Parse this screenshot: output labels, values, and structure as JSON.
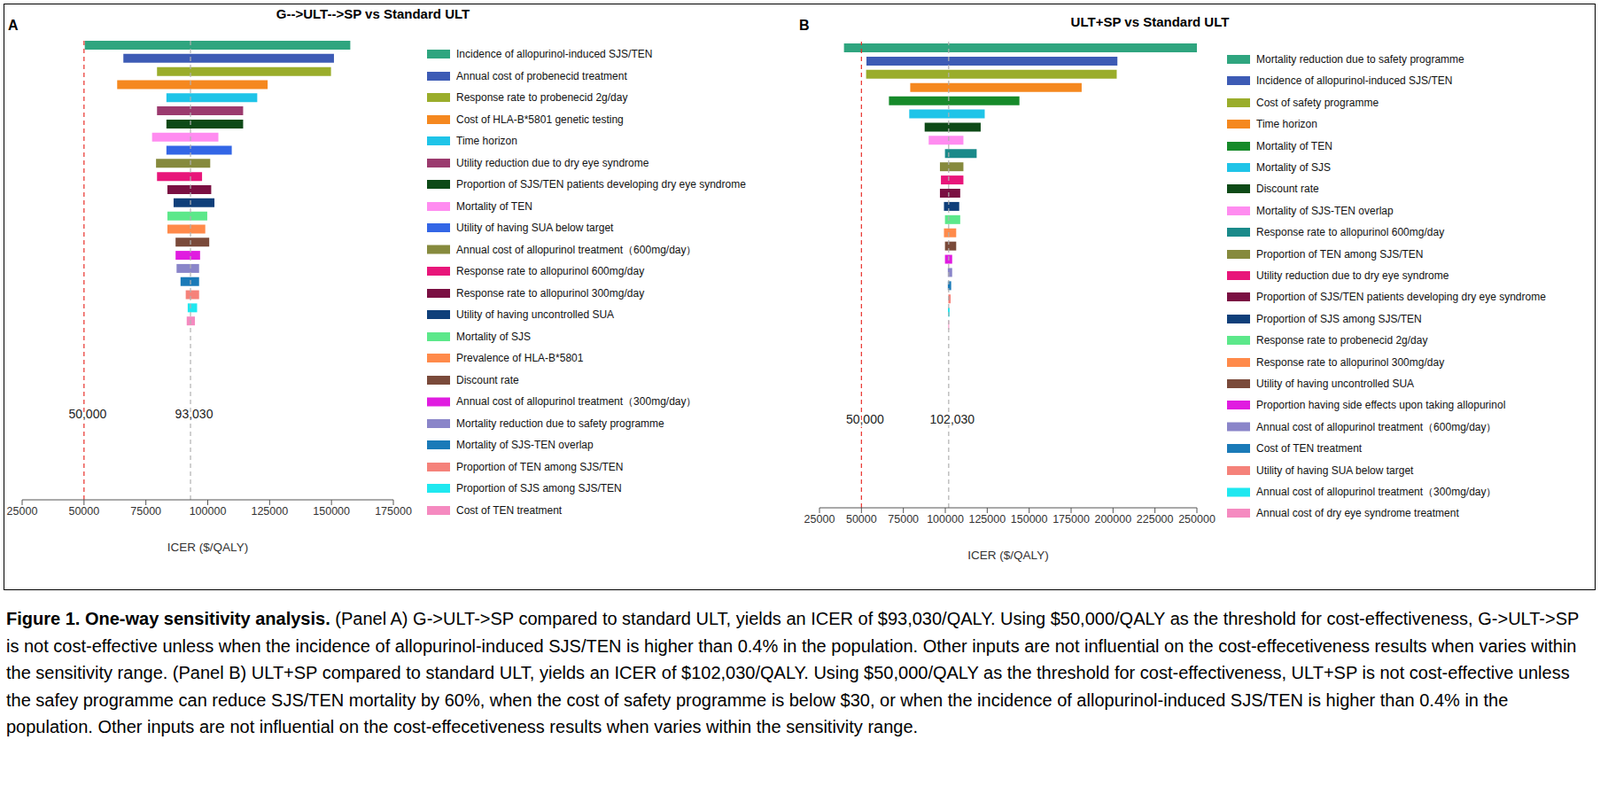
{
  "chart_data": [
    {
      "type": "bar",
      "orientation": "horizontal",
      "panel_label": "A",
      "title": "G-->ULT-->SP vs Standard ULT",
      "x_label": "ICER ($/QALY)",
      "legend": "right",
      "tick_labels": "x",
      "categories": [
        "Incidence of allopurinol-induced SJS/TEN",
        "Annual cost of probenecid treatment",
        "Response rate to probenecid 2g/day",
        "Cost of HLA-B*5801 genetic testing",
        "Time horizon",
        "Utility reduction due to dry eye syndrome",
        "Proportion of SJS/TEN patients developing dry eye syndrome",
        "Mortality of TEN",
        "Utility of having SUA below target",
        "Annual cost of allopurinol treatment（600mg/day）",
        "Response rate to allopurinol 600mg/day",
        "Response rate to allopurinol 300mg/day",
        "Utility of having uncontrolled SUA",
        "Mortality of SJS",
        "Prevalence of HLA-B*5801",
        "Discount rate",
        "Annual cost of allopurinol treatment（300mg/day）",
        "Mortality reduction due to safety programme",
        "Mortality of SJS-TEN overlap",
        "Proportion of TEN among SJS/TEN",
        "Proportion of SJS among SJS/TEN",
        "Cost of TEN treatment"
      ],
      "low": [
        50300,
        65900,
        79500,
        63400,
        83300,
        79500,
        83300,
        77500,
        83300,
        79100,
        79500,
        83700,
        86200,
        83700,
        83700,
        87000,
        87000,
        87400,
        89000,
        91100,
        91900,
        91500
      ],
      "high": [
        157600,
        151000,
        149800,
        124200,
        120000,
        114300,
        114300,
        104300,
        109700,
        101000,
        97700,
        101400,
        102700,
        99800,
        99000,
        100600,
        96900,
        96500,
        96500,
        96500,
        95700,
        94800
      ],
      "colors": [
        "#2fa57f",
        "#3d5bb5",
        "#9aad2b",
        "#f5881f",
        "#1fc4e8",
        "#9b3a6e",
        "#0d4a17",
        "#ff8cf0",
        "#3366e6",
        "#868a3d",
        "#e8167a",
        "#7a0f42",
        "#0f3f7a",
        "#5ce88a",
        "#ff8a4a",
        "#7a4a3a",
        "#e01ce0",
        "#8a85c9",
        "#1a7ab8",
        "#f5827a",
        "#1fe8f0",
        "#f58ac0"
      ],
      "xlim": [
        25000,
        175000
      ],
      "xticks": [
        25000,
        50000,
        75000,
        100000,
        125000,
        150000,
        175000
      ],
      "reference_lines": [
        {
          "value": 50000,
          "label": "50,000",
          "color": "#e8302a",
          "line_style": "dashed"
        },
        {
          "value": 93030,
          "label": "93,030",
          "color": "#b0b0b0",
          "line_style": "dashed"
        }
      ]
    },
    {
      "type": "bar",
      "orientation": "horizontal",
      "panel_label": "B",
      "title": "ULT+SP vs Standard ULT",
      "x_label": "ICER ($/QALY)",
      "legend": "right",
      "tick_labels": "x",
      "categories": [
        "Mortality reduction due to safety programme",
        "Incidence of allopurinol-induced SJS/TEN",
        "Cost of safety programme",
        "Time horizon",
        "Mortality of TEN",
        "Mortality of SJS",
        "Discount rate",
        "Mortality of SJS-TEN overlap",
        "Response rate to allopurinol 600mg/day",
        "Proportion of TEN among SJS/TEN",
        "Utility reduction due to dry eye syndrome",
        "Proportion of SJS/TEN patients developing dry eye syndrome",
        "Proportion of SJS among SJS/TEN",
        "Response rate to probenecid 2g/day",
        "Response rate to allopurinol 300mg/day",
        "Utility of having uncontrolled SUA",
        "Proportion having side effects upon taking allopurinol",
        "Annual cost of allopurinol treatment（600mg/day）",
        "Cost of TEN treatment",
        "Utility of having SUA below target",
        "Annual cost of allopurinol treatment（300mg/day）",
        "Annual cost of dry eye syndrome treatment"
      ],
      "low": [
        39600,
        53000,
        52800,
        79100,
        66400,
        78500,
        87700,
        90100,
        99800,
        96800,
        97400,
        96800,
        99200,
        99800,
        99200,
        99800,
        99800,
        101500,
        101500,
        101800,
        101600,
        101800
      ],
      "high": [
        250000,
        202600,
        202200,
        181300,
        144200,
        123500,
        121100,
        110800,
        118700,
        110800,
        110800,
        108900,
        108300,
        108900,
        106500,
        106500,
        104100,
        104100,
        103500,
        103200,
        102600,
        102300
      ],
      "colors": [
        "#2fa57f",
        "#3d5bb5",
        "#9aad2b",
        "#f5881f",
        "#168a2a",
        "#1fc4e8",
        "#0d4a17",
        "#ff8cf0",
        "#1a8a8a",
        "#868a3d",
        "#e8167a",
        "#7a0f42",
        "#0f3f7a",
        "#5ce88a",
        "#ff8a4a",
        "#7a4a3a",
        "#e01ce0",
        "#8a85c9",
        "#1a7ab8",
        "#f5827a",
        "#1fe8f0",
        "#f58ac0"
      ],
      "xlim": [
        25000,
        250000
      ],
      "xticks": [
        25000,
        50000,
        75000,
        100000,
        125000,
        150000,
        175000,
        200000,
        225000,
        250000
      ],
      "reference_lines": [
        {
          "value": 50000,
          "label": "50,000",
          "color": "#e8302a",
          "line_style": "dashed"
        },
        {
          "value": 102030,
          "label": "102,030",
          "color": "#b0b0b0",
          "line_style": "dashed"
        }
      ]
    }
  ],
  "caption": {
    "title": "Figure 1. One-way sensitivity analysis.",
    "text": "(Panel A) G->ULT->SP compared to standard ULT, yields an ICER of $93,030/QALY. Using $50,000/QALY as the threshold for cost-effectiveness, G->ULT->SP is not cost-effective unless when the incidence of allopurinol-induced SJS/TEN is higher than 0.4% in the population. Other inputs are not influential on the cost-effecetiveness results when varies within the sensitivity range. (Panel B) ULT+SP compared to standard ULT, yields an ICER of $102,030/QALY. Using $50,000/QALY as the threshold for cost-effectiveness, ULT+SP is not cost-effective unless the safey programme can reduce SJS/TEN mortality by 60%, when the cost of safety programme is below $30, or when the incidence of allopurinol-induced SJS/TEN is higher than 0.4% in the population. Other inputs are not influential on the cost-effecetiveness results when varies within the sensitivity range."
  }
}
